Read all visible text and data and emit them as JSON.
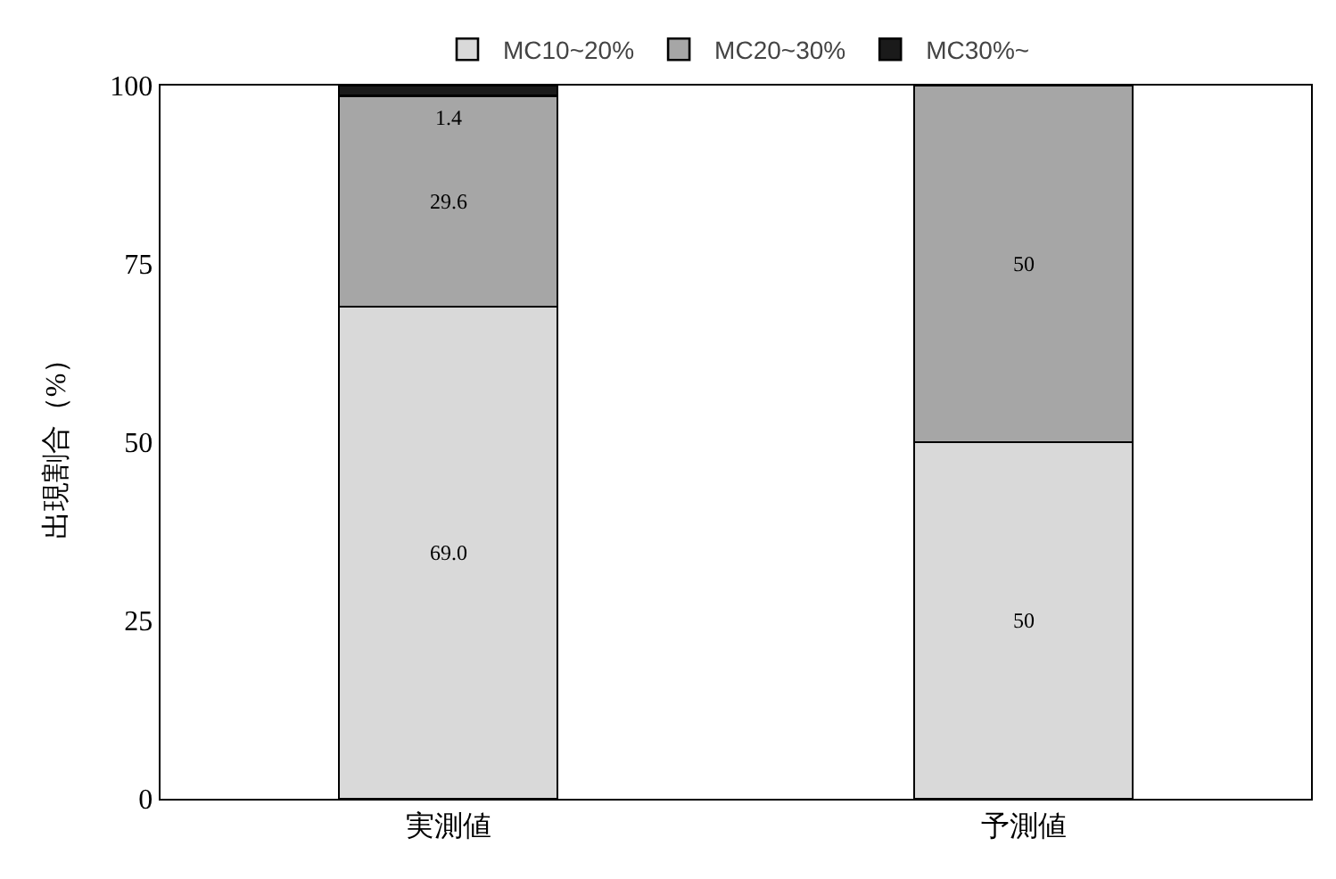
{
  "chart_data": {
    "type": "bar",
    "stacked": true,
    "ylabel": "出現割合（%）",
    "categories": [
      "実測値",
      "予測値"
    ],
    "series": [
      {
        "name": "MC10~20%",
        "color": "#d9d9d9",
        "values": [
          69.0,
          50
        ],
        "value_labels": [
          "69.0",
          "50"
        ]
      },
      {
        "name": "MC20~30%",
        "color": "#a6a6a6",
        "values": [
          29.6,
          50
        ],
        "value_labels": [
          "29.6",
          "50"
        ]
      },
      {
        "name": "MC30%~",
        "color": "#1a1a1a",
        "values": [
          1.4,
          null
        ],
        "value_labels": [
          "1.4",
          null
        ]
      }
    ],
    "ylim": [
      0,
      100
    ],
    "yticks": [
      0,
      25,
      50,
      75,
      100
    ],
    "grid": false,
    "legend": "top"
  }
}
